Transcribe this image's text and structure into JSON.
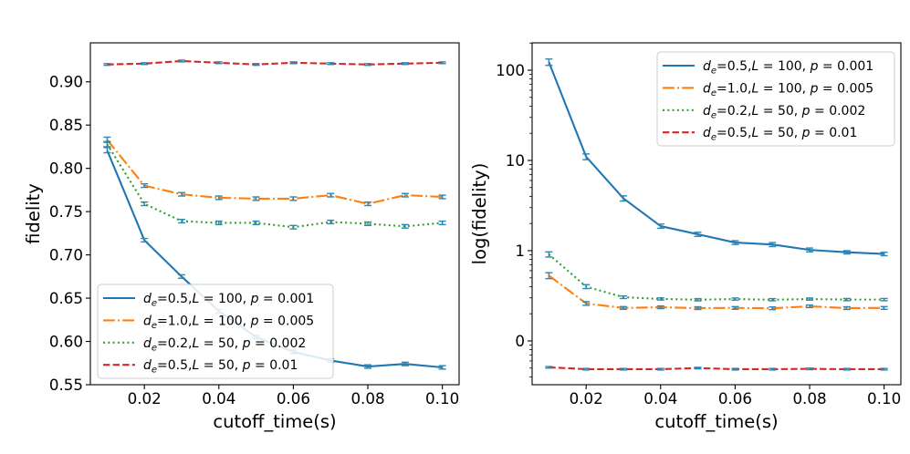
{
  "chart_data": [
    {
      "type": "line",
      "xlabel": "cutoff_time(s)",
      "ylabel": "fidelity",
      "xlim": [
        0.0055,
        0.1045
      ],
      "ylim": [
        0.55,
        0.945
      ],
      "yscale": "linear",
      "grid": false,
      "legend_loc": "lower left",
      "xticks": [
        0.02,
        0.04,
        0.06,
        0.08,
        0.1
      ],
      "xtick_labels": [
        "0.02",
        "0.04",
        "0.06",
        "0.08",
        "0.10"
      ],
      "yticks": [
        0.55,
        0.6,
        0.65,
        0.7,
        0.75,
        0.8,
        0.85,
        0.9
      ],
      "ytick_labels": [
        "0.55",
        "0.60",
        "0.65",
        "0.70",
        "0.75",
        "0.80",
        "0.85",
        "0.90"
      ],
      "errorbar_color": "#2f86b0",
      "x": [
        0.01,
        0.02,
        0.03,
        0.04,
        0.05,
        0.06,
        0.07,
        0.08,
        0.09,
        0.1
      ],
      "series": [
        {
          "label": [
            {
              "t": "d",
              "i": true
            },
            {
              "t": "e",
              "sub": true
            },
            {
              "t": "=0.5,"
            },
            {
              "t": "L",
              "i": true
            },
            {
              "t": " = 100, "
            },
            {
              "t": "p",
              "i": true
            },
            {
              "t": " = 0.001"
            }
          ],
          "color": "#1f77b4",
          "linestyle": "solid",
          "values": [
            0.821,
            0.717,
            0.675,
            0.635,
            0.605,
            0.588,
            0.578,
            0.571,
            0.574,
            0.57
          ],
          "yerr": [
            0.003,
            0.002,
            0.002,
            0.002,
            0.002,
            0.002,
            0.002,
            0.002,
            0.002,
            0.002
          ]
        },
        {
          "label": [
            {
              "t": "d",
              "i": true
            },
            {
              "t": "e",
              "sub": true
            },
            {
              "t": "=1.0,"
            },
            {
              "t": "L",
              "i": true
            },
            {
              "t": " = 100, "
            },
            {
              "t": "p",
              "i": true
            },
            {
              "t": " = 0.005"
            }
          ],
          "color": "#ff7f0e",
          "linestyle": "dashdot",
          "values": [
            0.833,
            0.78,
            0.77,
            0.766,
            0.765,
            0.765,
            0.769,
            0.759,
            0.769,
            0.767
          ],
          "yerr": [
            0.003,
            0.002,
            0.002,
            0.002,
            0.002,
            0.002,
            0.002,
            0.002,
            0.002,
            0.002
          ]
        },
        {
          "label": [
            {
              "t": "d",
              "i": true
            },
            {
              "t": "e",
              "sub": true
            },
            {
              "t": "=0.2,"
            },
            {
              "t": "L",
              "i": true
            },
            {
              "t": " = 50, "
            },
            {
              "t": "p",
              "i": true
            },
            {
              "t": " = 0.002"
            }
          ],
          "color": "#2ca02c",
          "linestyle": "dotted",
          "values": [
            0.828,
            0.759,
            0.739,
            0.737,
            0.737,
            0.732,
            0.738,
            0.736,
            0.733,
            0.737
          ],
          "yerr": [
            0.003,
            0.002,
            0.002,
            0.002,
            0.002,
            0.002,
            0.002,
            0.002,
            0.002,
            0.002
          ]
        },
        {
          "label": [
            {
              "t": "d",
              "i": true
            },
            {
              "t": "e",
              "sub": true
            },
            {
              "t": "=0.5,"
            },
            {
              "t": "L",
              "i": true
            },
            {
              "t": " = 50, "
            },
            {
              "t": "p",
              "i": true
            },
            {
              "t": " = 0.01"
            }
          ],
          "color": "#d62728",
          "linestyle": "dashed",
          "values": [
            0.92,
            0.921,
            0.924,
            0.922,
            0.92,
            0.922,
            0.921,
            0.92,
            0.921,
            0.922
          ],
          "yerr": [
            0.001,
            0.001,
            0.001,
            0.001,
            0.001,
            0.001,
            0.001,
            0.001,
            0.001,
            0.001
          ]
        }
      ]
    },
    {
      "type": "line",
      "xlabel": "cutoff_time(s)",
      "ylabel": "log(fidelity)",
      "xlim": [
        0.0055,
        0.1045
      ],
      "ylim": [
        0.0327,
        201
      ],
      "yscale": "log",
      "grid": false,
      "legend_loc": "upper right",
      "xticks": [
        0.02,
        0.04,
        0.06,
        0.08,
        0.1
      ],
      "xtick_labels": [
        "0.02",
        "0.04",
        "0.06",
        "0.08",
        "0.10"
      ],
      "yticks": [
        0.1,
        1,
        10,
        100
      ],
      "ytick_labels": [
        "0",
        "1",
        "10",
        "100"
      ],
      "errorbar_color": "#2f86b0",
      "x": [
        0.01,
        0.02,
        0.03,
        0.04,
        0.05,
        0.06,
        0.07,
        0.08,
        0.09,
        0.1
      ],
      "series": [
        {
          "label": [
            {
              "t": "d",
              "i": true
            },
            {
              "t": "e",
              "sub": true
            },
            {
              "t": "=0.5,"
            },
            {
              "t": "L",
              "i": true
            },
            {
              "t": " = 100, "
            },
            {
              "t": "p",
              "i": true
            },
            {
              "t": " = 0.001"
            }
          ],
          "color": "#1f77b4",
          "linestyle": "solid",
          "values": [
            123,
            11.0,
            3.8,
            1.87,
            1.52,
            1.23,
            1.17,
            1.02,
            0.96,
            0.92
          ],
          "yerr": [
            10,
            0.8,
            0.25,
            0.1,
            0.08,
            0.06,
            0.06,
            0.05,
            0.04,
            0.04
          ]
        },
        {
          "label": [
            {
              "t": "d",
              "i": true
            },
            {
              "t": "e",
              "sub": true
            },
            {
              "t": "=1.0,"
            },
            {
              "t": "L",
              "i": true
            },
            {
              "t": " = 100, "
            },
            {
              "t": "p",
              "i": true
            },
            {
              "t": " = 0.005"
            }
          ],
          "color": "#ff7f0e",
          "linestyle": "dashdot",
          "values": [
            0.53,
            0.26,
            0.232,
            0.236,
            0.231,
            0.232,
            0.23,
            0.242,
            0.231,
            0.232
          ],
          "yerr": [
            0.04,
            0.012,
            0.008,
            0.008,
            0.008,
            0.008,
            0.008,
            0.008,
            0.008,
            0.008
          ]
        },
        {
          "label": [
            {
              "t": "d",
              "i": true
            },
            {
              "t": "e",
              "sub": true
            },
            {
              "t": "=0.2,"
            },
            {
              "t": "L",
              "i": true
            },
            {
              "t": " = 50, "
            },
            {
              "t": "p",
              "i": true
            },
            {
              "t": " = 0.002"
            }
          ],
          "color": "#2ca02c",
          "linestyle": "dotted",
          "values": [
            0.91,
            0.4,
            0.305,
            0.292,
            0.286,
            0.291,
            0.286,
            0.291,
            0.287,
            0.287
          ],
          "yerr": [
            0.06,
            0.02,
            0.01,
            0.008,
            0.008,
            0.008,
            0.008,
            0.008,
            0.008,
            0.008
          ]
        },
        {
          "label": [
            {
              "t": "d",
              "i": true
            },
            {
              "t": "e",
              "sub": true
            },
            {
              "t": "=0.5,"
            },
            {
              "t": "L",
              "i": true
            },
            {
              "t": " = 50, "
            },
            {
              "t": "p",
              "i": true
            },
            {
              "t": " = 0.01"
            }
          ],
          "color": "#d62728",
          "linestyle": "dashed",
          "values": [
            0.051,
            0.0486,
            0.0486,
            0.0486,
            0.05,
            0.0486,
            0.0486,
            0.049,
            0.0486,
            0.0486
          ],
          "yerr": [
            0.001,
            0.001,
            0.001,
            0.001,
            0.001,
            0.001,
            0.001,
            0.001,
            0.001,
            0.001
          ]
        }
      ]
    }
  ]
}
